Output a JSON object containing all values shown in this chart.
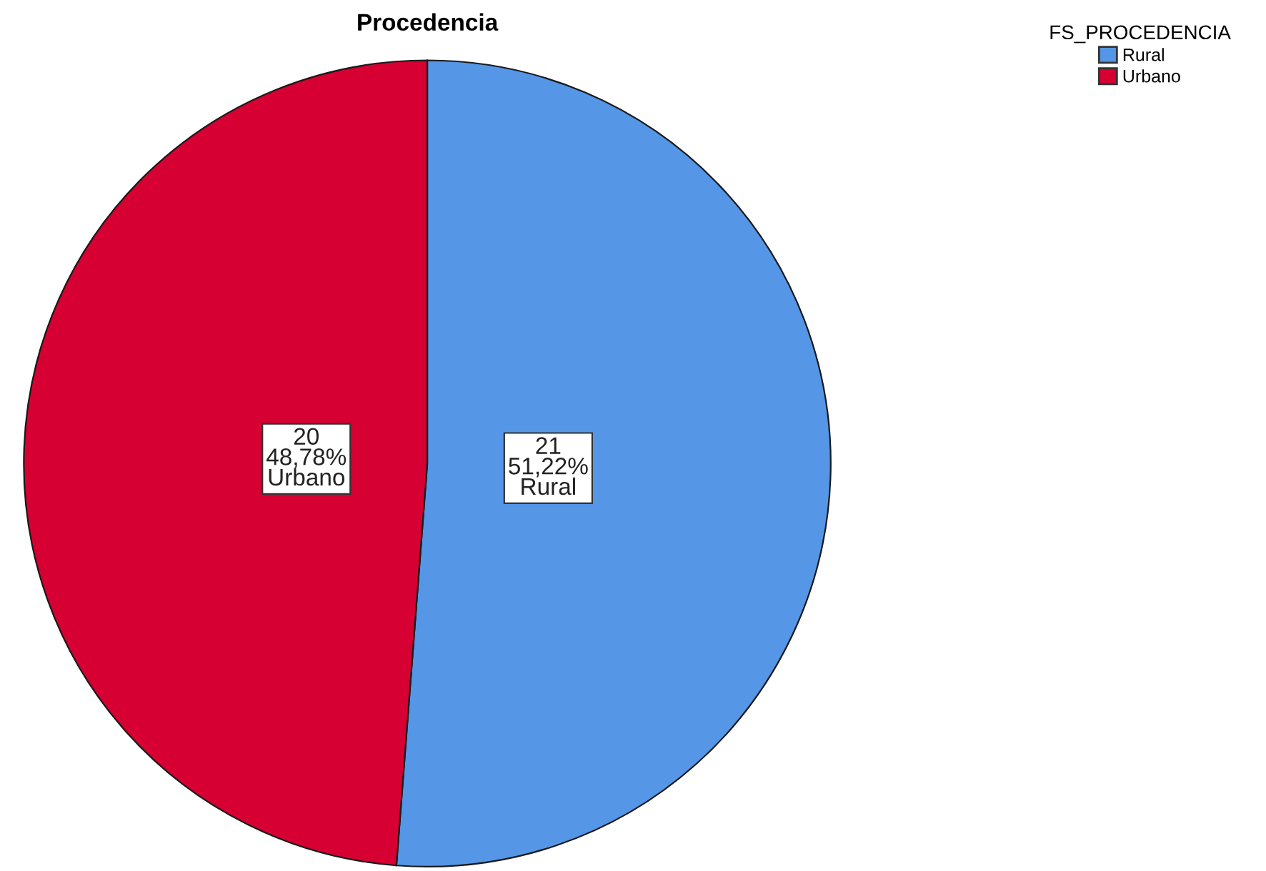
{
  "chart_data": {
    "type": "pie",
    "title": "Procedencia",
    "legend_title": "FS_PROCEDENCIA",
    "legend": "top right",
    "categories": [
      "Rural",
      "Urbano"
    ],
    "values": [
      21,
      20
    ],
    "colors": [
      "#5596e6",
      "#d60032"
    ],
    "value_labels": [
      "21\n51,22%\nRural",
      "20\n48,78%\nUrbano"
    ]
  }
}
